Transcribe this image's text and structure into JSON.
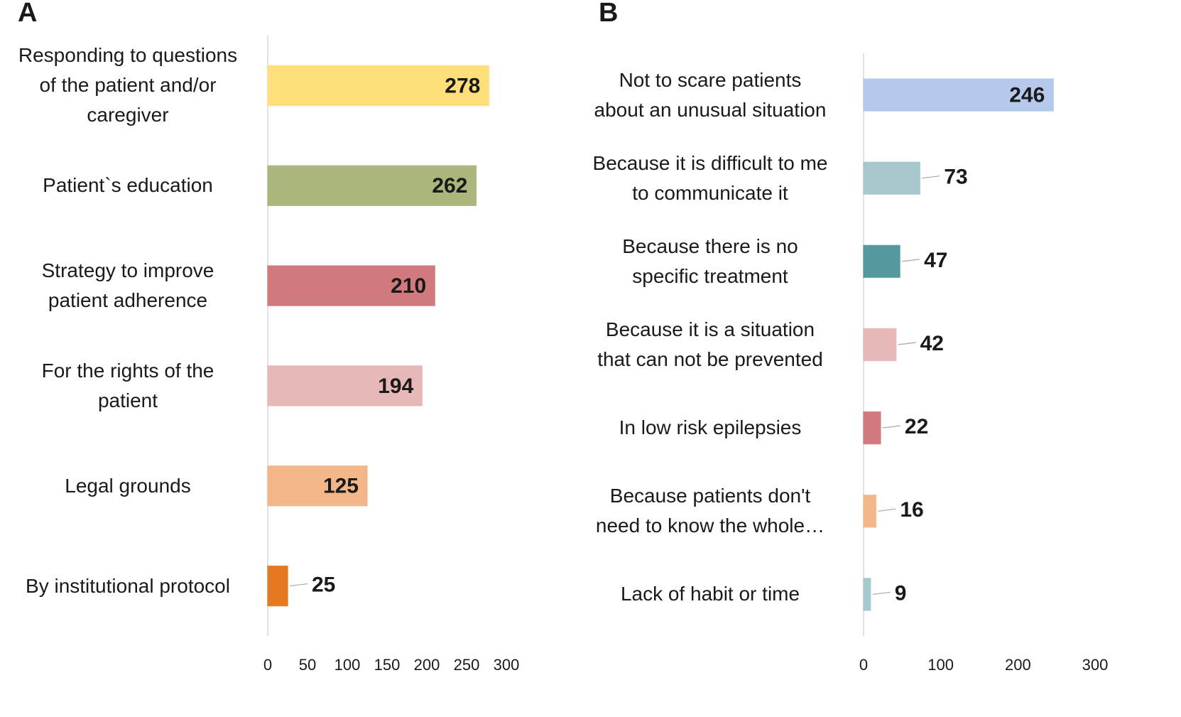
{
  "chart_data": [
    {
      "type": "barh",
      "title": "A",
      "categories": [
        "Responding to questions\nof the patient and/or\ncaregiver",
        "Patient`s education",
        "Strategy to improve\npatient adherence",
        "For the rights of the\npatient",
        "Legal grounds",
        "By institutional protocol"
      ],
      "values": [
        278,
        262,
        210,
        194,
        125,
        25
      ],
      "colors": [
        "#ffdf7a",
        "#a9b67c",
        "#d07a7d",
        "#e8b7b7",
        "#f3b689",
        "#e57820"
      ],
      "xlim": [
        0,
        300
      ],
      "xticks": [
        0,
        50,
        100,
        150,
        200,
        250,
        300
      ],
      "grid": false
    },
    {
      "type": "barh",
      "title": "B",
      "categories": [
        "Not to scare patients\nabout an unusual situation",
        "Because it is difficult to me\nto communicate it",
        "Because there is no\nspecific treatment",
        "Because it is a situation\nthat can not be prevented",
        "In low risk epilepsies",
        "Because patients don't\nneed to know the whole…",
        "Lack of habit or time"
      ],
      "values": [
        246,
        73,
        47,
        42,
        22,
        16,
        9
      ],
      "colors": [
        "#b4c9ec",
        "#a6c8cc",
        "#55999f",
        "#e8b7b7",
        "#d07a7d",
        "#f3b689",
        "#a6c8cc"
      ],
      "xlim": [
        0,
        300
      ],
      "xticks": [
        0,
        100,
        200,
        300
      ],
      "grid": false
    }
  ]
}
